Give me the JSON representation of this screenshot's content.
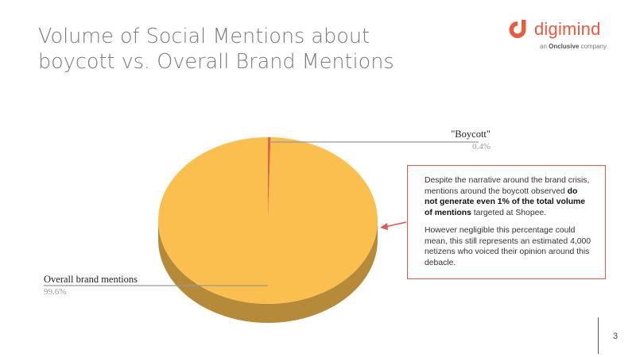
{
  "slide": {
    "title_line1": "Volume of Social Mentions about",
    "title_line2": "boycott vs. Overall Brand Mentions",
    "page_number": "3"
  },
  "logo": {
    "wordmark": "digimind",
    "tagline_prefix": "an ",
    "tagline_brand": "Onclusive",
    "tagline_suffix": " company",
    "color": "#ea5a3c"
  },
  "callout": {
    "p1_before": "Despite the narrative around the brand crisis, mentions around the boycott observed ",
    "p1_bold": "do not generate even 1% of the total volume of mentions",
    "p1_after": " targeted at Shopee.",
    "p2": "However negligible this percentage could mean, this still represents an estimated 4,000 netizens who voiced their opinion around this debacle.",
    "border_color": "#e05a4a"
  },
  "chart_data": {
    "type": "pie",
    "title": "",
    "slices": [
      {
        "label": "\"Boycott\"",
        "value": 0.4,
        "value_label": "0.4%",
        "color": "#e8604a"
      },
      {
        "label": "Overall brand mentions",
        "value": 99.6,
        "value_label": "99.6%",
        "color": "#fbbf4f"
      }
    ],
    "style": "3d"
  }
}
